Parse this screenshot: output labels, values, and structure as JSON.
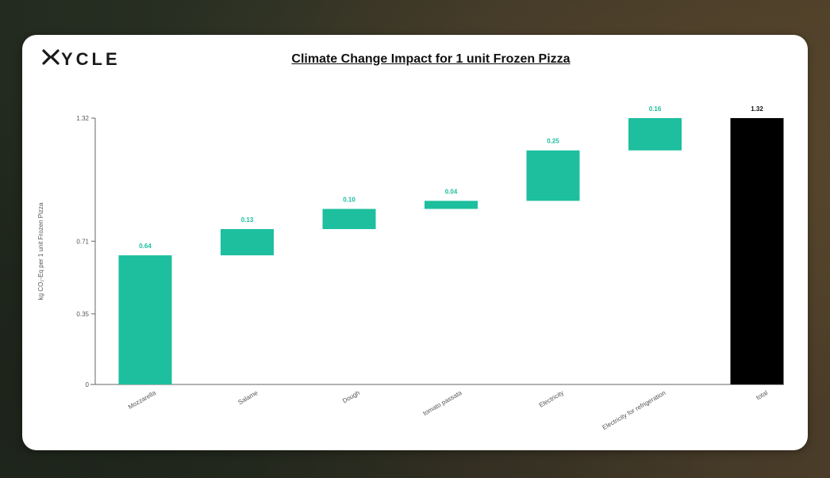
{
  "brand": {
    "logo_text": "YCLE",
    "logo_icon": "x-logo-icon"
  },
  "chart_data": {
    "type": "waterfall",
    "title": "Climate Change Impact for 1 unit Frozen Pizza",
    "ylabel": "kg CO₂-Eq per 1 unit Frozen Pizza",
    "xlabel": "",
    "ylim": [
      0,
      1.32
    ],
    "yticks": [
      0,
      0.35,
      0.71,
      1.32
    ],
    "ytick_labels": [
      "0",
      "0.35",
      "0.71",
      "1.32"
    ],
    "categories": [
      "Mozzarella",
      "Salame",
      "Dough",
      "tomato passata",
      "Electricity",
      "Electricity for refrigeration",
      "total"
    ],
    "values": [
      0.64,
      0.13,
      0.1,
      0.04,
      0.25,
      0.16,
      1.32
    ],
    "value_labels": [
      "0.64",
      "0.13",
      "0.10",
      "0.04",
      "0.25",
      "0.16",
      "1.32"
    ],
    "is_total": [
      false,
      false,
      false,
      false,
      false,
      false,
      true
    ],
    "colors": {
      "increment": "#1dbf9f",
      "total": "#000000",
      "increment_label": "#1dbf9f",
      "total_label": "#111111"
    },
    "grid": false
  }
}
